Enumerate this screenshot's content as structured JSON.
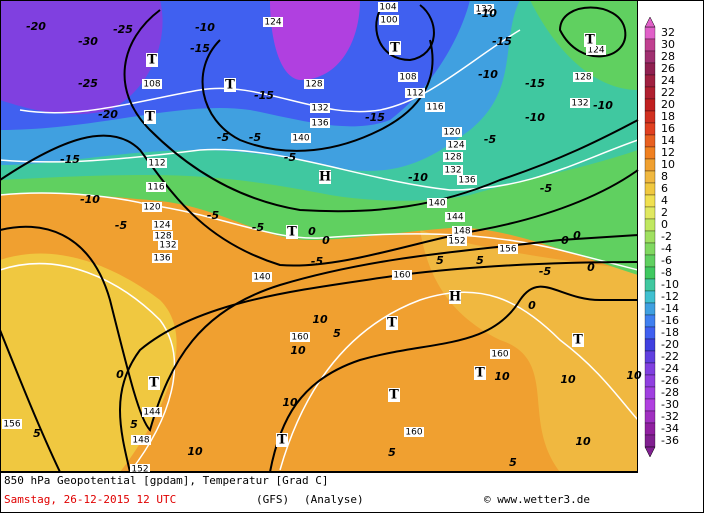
{
  "map": {
    "geopotential_labels": [
      "104",
      "100",
      "108",
      "112",
      "116",
      "120",
      "124",
      "128",
      "132",
      "136",
      "140",
      "144",
      "148",
      "152",
      "156",
      "160",
      "160",
      "160",
      "160",
      "144",
      "148",
      "152",
      "156",
      "140",
      "136",
      "132",
      "128",
      "124",
      "120",
      "116",
      "112",
      "108",
      "132",
      "136",
      "140",
      "128",
      "124",
      "124",
      "128",
      "132",
      "132"
    ],
    "temperature_labels": [
      "-10",
      "-15",
      "-10",
      "-15",
      "-10",
      "-10",
      "-5",
      "-5",
      "-10",
      "-15",
      "-5",
      "-5",
      "-5",
      "-15",
      "-10",
      "-5",
      "-5",
      "-5",
      "-20",
      "-25",
      "-30",
      "-20",
      "-25",
      "-15",
      "-10",
      "-15",
      "0",
      "0",
      "-5",
      "0",
      "0",
      "-5",
      "0",
      "0",
      "5",
      "5",
      "5",
      "10",
      "10",
      "10",
      "5",
      "10",
      "5",
      "10",
      "10",
      "10",
      "5",
      "5",
      "10",
      "0"
    ],
    "pressure_centers": [
      "H",
      "H",
      "T",
      "T",
      "T",
      "T",
      "T",
      "T",
      "T",
      "T",
      "T",
      "T",
      "T",
      "T"
    ]
  },
  "colorbar": {
    "labels": [
      32,
      30,
      28,
      26,
      24,
      22,
      20,
      18,
      16,
      14,
      12,
      10,
      8,
      6,
      4,
      2,
      0,
      -2,
      -4,
      -6,
      -8,
      -10,
      -12,
      -14,
      -16,
      -18,
      -20,
      -22,
      -24,
      -26,
      -28,
      -30,
      -32,
      -34,
      -36
    ],
    "colors": [
      "#e060c8",
      "#c04090",
      "#a03070",
      "#902050",
      "#a02040",
      "#b02030",
      "#c02020",
      "#d03020",
      "#e04020",
      "#e86020",
      "#f08020",
      "#f0a030",
      "#f0b840",
      "#f0c840",
      "#f0e050",
      "#e0e860",
      "#c0e860",
      "#a0e060",
      "#80d860",
      "#60d060",
      "#40c860",
      "#40c8a0",
      "#40c0d0",
      "#40a0e0",
      "#4080f0",
      "#4060f0",
      "#4040e0",
      "#6040e0",
      "#8040e0",
      "#9040e0",
      "#a040e0",
      "#b040e0",
      "#a030c0",
      "#9020a0",
      "#802090"
    ]
  },
  "footer": {
    "title": "850 hPa Geopotential [gpdam], Temperatur [Grad C]",
    "date": "Samstag, 26-12-2015  12 UTC",
    "model": "(GFS)",
    "run": "(Analyse)",
    "credit": "© www.wetter3.de"
  }
}
